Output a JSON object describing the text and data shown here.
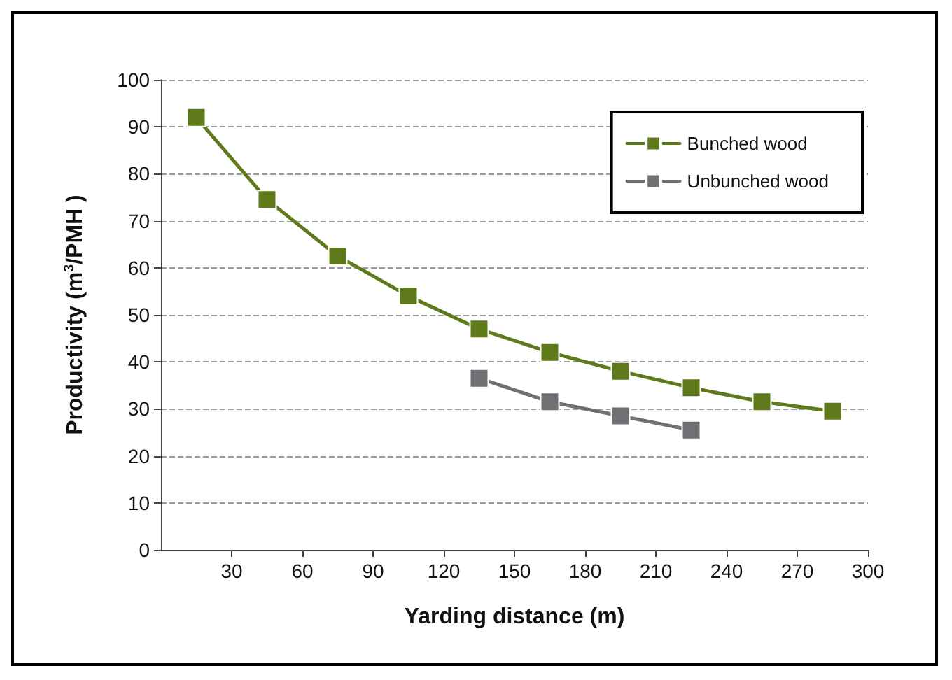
{
  "chart_data": {
    "type": "line",
    "xlabel": "Yarding distance (m)",
    "ylabel": "Productivity (m$^{3}$/PMH )",
    "series": [
      {
        "name": "Bunched wood",
        "color": "#5e7a1a",
        "x": [
          15,
          45,
          75,
          105,
          135,
          165,
          195,
          225,
          255,
          285
        ],
        "values": [
          92,
          74.5,
          62.5,
          54,
          47,
          42,
          38,
          34.5,
          31.5,
          29.5
        ]
      },
      {
        "name": "Unbunched wood",
        "color": "#707074",
        "x": [
          135,
          165,
          195,
          225
        ],
        "values": [
          36.5,
          31.5,
          28.5,
          25.5
        ]
      }
    ],
    "xlim": [
      0,
      300
    ],
    "xticks": [
      30,
      60,
      90,
      120,
      150,
      180,
      210,
      240,
      270,
      300
    ],
    "ylim": [
      0,
      100
    ],
    "yticks": [
      0,
      10,
      20,
      30,
      40,
      50,
      60,
      70,
      80,
      90,
      100
    ],
    "grid": "y",
    "legend": "top right",
    "marker": "square",
    "line_style": "solid"
  }
}
